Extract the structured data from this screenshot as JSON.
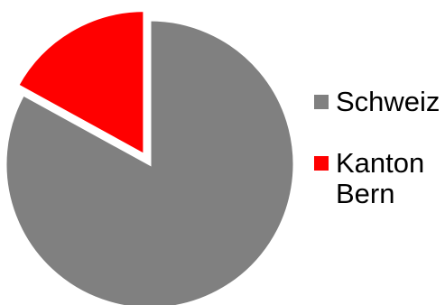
{
  "chart_data": {
    "type": "pie",
    "slices": [
      {
        "label": "Schweiz",
        "value": 83,
        "color": "#808080",
        "exploded": false
      },
      {
        "label": "Kanton\nBern",
        "value": 17,
        "color": "#ff0000",
        "exploded": true
      }
    ],
    "legend_placement": "right"
  }
}
